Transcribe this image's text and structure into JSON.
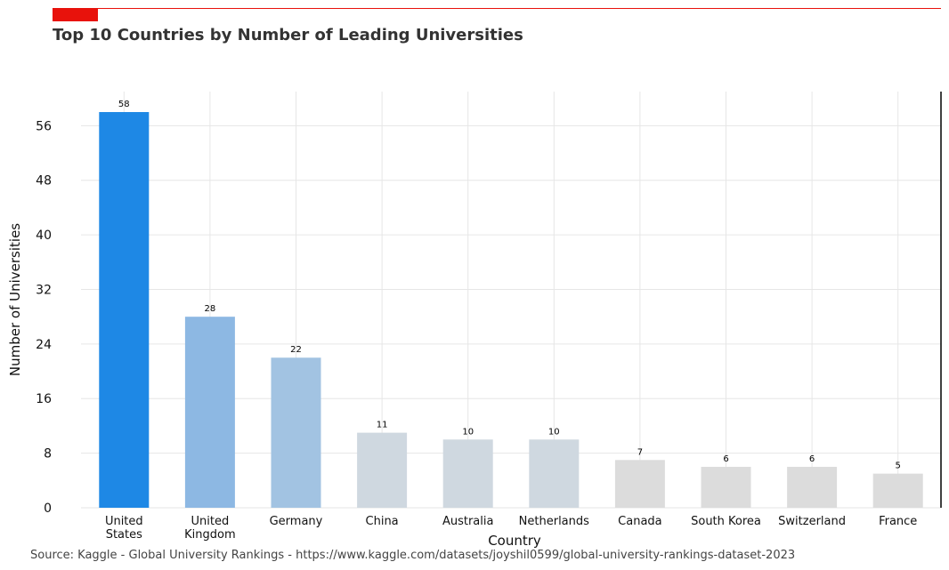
{
  "header": {
    "title": "Top 10 Countries by Number of Leading Universities",
    "accent_color": "#e8120c"
  },
  "footer": {
    "source": "Source: Kaggle - Global University Rankings - https://www.kaggle.com/datasets/joyshil0599/global-university-rankings-dataset-2023"
  },
  "chart_data": {
    "type": "bar",
    "title": "Top 10 Countries by Number of Leading Universities",
    "xlabel": "Country",
    "ylabel": "Number of Universities",
    "ylim": [
      0,
      61
    ],
    "yticks": [
      0,
      8,
      16,
      24,
      32,
      40,
      48,
      56
    ],
    "grid": true,
    "categories": [
      [
        "United",
        "States"
      ],
      [
        "United",
        "Kingdom"
      ],
      [
        "Germany"
      ],
      [
        "China"
      ],
      [
        "Australia"
      ],
      [
        "Netherlands"
      ],
      [
        "Canada"
      ],
      [
        "South Korea"
      ],
      [
        "Switzerland"
      ],
      [
        "France"
      ]
    ],
    "values": [
      58,
      28,
      22,
      11,
      10,
      10,
      7,
      6,
      6,
      5
    ],
    "colors": [
      "#1e88e5",
      "#8db8e3",
      "#a2c3e2",
      "#cfd8e0",
      "#cfd8e0",
      "#cfd8e0",
      "#dcdcdc",
      "#dcdcdc",
      "#dcdcdc",
      "#dcdcdc"
    ]
  }
}
